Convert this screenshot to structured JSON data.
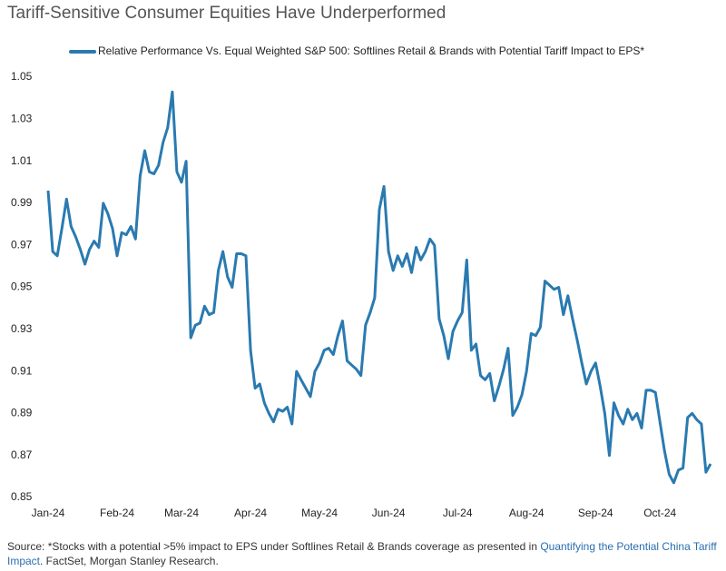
{
  "chart_data": {
    "type": "line",
    "title": "Tariff-Sensitive Consumer Equities Have Underperformed",
    "categories": [
      "Jan-24",
      null,
      null,
      null,
      null,
      null,
      null,
      null,
      null,
      null,
      null,
      null,
      null,
      null,
      null,
      "Feb-24",
      null,
      null,
      null,
      null,
      null,
      null,
      null,
      null,
      null,
      null,
      null,
      null,
      null,
      "Mar-24",
      null,
      null,
      null,
      null,
      null,
      null,
      null,
      null,
      null,
      null,
      null,
      null,
      null,
      null,
      "Apr-24",
      null,
      null,
      null,
      null,
      null,
      null,
      null,
      null,
      null,
      null,
      null,
      null,
      null,
      null,
      "May-24",
      null,
      null,
      null,
      null,
      null,
      null,
      null,
      null,
      null,
      null,
      null,
      null,
      null,
      null,
      "Jun-24",
      null,
      null,
      null,
      null,
      null,
      null,
      null,
      null,
      null,
      null,
      null,
      null,
      null,
      null,
      "Jul-24",
      null,
      null,
      null,
      null,
      null,
      null,
      null,
      null,
      null,
      null,
      null,
      null,
      null,
      null,
      "Aug-24",
      null,
      null,
      null,
      null,
      null,
      null,
      null,
      null,
      null,
      null,
      null,
      null,
      null,
      null,
      "Sep-24",
      null,
      null,
      null,
      null,
      null,
      null,
      null,
      null,
      null,
      null,
      null,
      null,
      null,
      "Oct-24",
      null,
      null,
      null,
      null,
      null,
      null,
      null,
      null,
      null,
      null,
      null
    ],
    "series": [
      {
        "name": "Relative Performance Vs. Equal Weighted S&P 500: Softlines Retail & Brands with Potential Tariff Impact to EPS*",
        "color": "#2a7ab0",
        "values": [
          0.996,
          0.967,
          0.965,
          0.978,
          0.992,
          0.979,
          0.974,
          0.968,
          0.961,
          0.968,
          0.972,
          0.969,
          0.99,
          0.985,
          0.978,
          0.965,
          0.976,
          0.975,
          0.979,
          0.973,
          1.003,
          1.015,
          1.005,
          1.004,
          1.008,
          1.019,
          1.026,
          1.043,
          1.005,
          1.0,
          1.01,
          0.926,
          0.932,
          0.933,
          0.941,
          0.937,
          0.938,
          0.958,
          0.967,
          0.955,
          0.95,
          0.966,
          0.966,
          0.965,
          0.92,
          0.902,
          0.904,
          0.895,
          0.89,
          0.886,
          0.892,
          0.891,
          0.893,
          0.885,
          0.91,
          0.906,
          0.902,
          0.898,
          0.91,
          0.914,
          0.92,
          0.921,
          0.918,
          0.927,
          0.934,
          0.915,
          0.913,
          0.911,
          0.908,
          0.932,
          0.938,
          0.945,
          0.987,
          0.998,
          0.967,
          0.958,
          0.965,
          0.96,
          0.966,
          0.957,
          0.969,
          0.963,
          0.967,
          0.973,
          0.97,
          0.935,
          0.927,
          0.916,
          0.929,
          0.934,
          0.938,
          0.963,
          0.92,
          0.923,
          0.908,
          0.906,
          0.909,
          0.896,
          0.903,
          0.911,
          0.921,
          0.889,
          0.893,
          0.899,
          0.91,
          0.928,
          0.927,
          0.931,
          0.953,
          0.951,
          0.949,
          0.95,
          0.937,
          0.946,
          0.935,
          0.925,
          0.914,
          0.904,
          0.91,
          0.914,
          0.903,
          0.89,
          0.87,
          0.895,
          0.889,
          0.885,
          0.892,
          0.887,
          0.89,
          0.883,
          0.901,
          0.901,
          0.9,
          0.886,
          0.872,
          0.861,
          0.857,
          0.863,
          0.864,
          0.888,
          0.89,
          0.887,
          0.885,
          0.862,
          0.866
        ]
      }
    ],
    "ylim": [
      0.85,
      1.05
    ],
    "yticks": [
      {
        "value": 0.85,
        "label": "0.85"
      },
      {
        "value": 0.87,
        "label": "0.87"
      },
      {
        "value": 0.89,
        "label": "0.89"
      },
      {
        "value": 0.91,
        "label": "0.91"
      },
      {
        "value": 0.93,
        "label": "0.93"
      },
      {
        "value": 0.95,
        "label": "0.95"
      },
      {
        "value": 0.97,
        "label": "0.97"
      },
      {
        "value": 0.99,
        "label": "0.99"
      },
      {
        "value": 1.01,
        "label": "1.01"
      },
      {
        "value": 1.03,
        "label": "1.03"
      },
      {
        "value": 1.05,
        "label": "1.05"
      }
    ],
    "grid": false,
    "legend": "top"
  },
  "source": {
    "prefix": "Source: *Stocks with a potential >5% impact to EPS under Softlines Retail & Brands coverage as presented in ",
    "link": "Quantifying the Potential China Tariff Impact",
    "suffix": ". FactSet, Morgan Stanley Research."
  }
}
